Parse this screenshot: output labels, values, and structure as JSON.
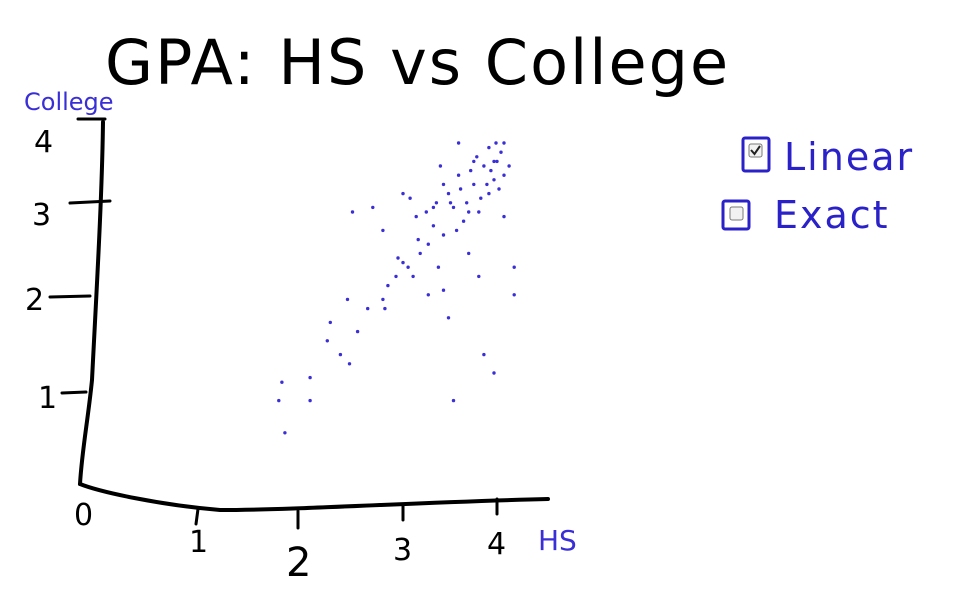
{
  "chart_data": {
    "type": "scatter",
    "title": "GPA: HS vs College",
    "xlabel": "HS",
    "ylabel": "College",
    "xlim": [
      0,
      4.5
    ],
    "ylim": [
      0,
      4
    ],
    "x_ticks": [
      "0",
      "1",
      "2",
      "3",
      "4"
    ],
    "y_ticks": [
      "1",
      "2",
      "3",
      "4"
    ],
    "points": [
      [
        1.85,
        1.15
      ],
      [
        1.82,
        0.95
      ],
      [
        1.88,
        0.6
      ],
      [
        2.13,
        1.2
      ],
      [
        2.13,
        0.95
      ],
      [
        2.3,
        1.6
      ],
      [
        2.33,
        1.8
      ],
      [
        2.43,
        1.45
      ],
      [
        2.5,
        2.05
      ],
      [
        2.52,
        1.35
      ],
      [
        2.6,
        1.7
      ],
      [
        2.7,
        1.95
      ],
      [
        2.85,
        2.05
      ],
      [
        2.87,
        1.95
      ],
      [
        2.9,
        2.2
      ],
      [
        2.98,
        2.3
      ],
      [
        3.0,
        2.5
      ],
      [
        3.05,
        2.45
      ],
      [
        3.1,
        2.4
      ],
      [
        3.15,
        2.3
      ],
      [
        3.2,
        2.7
      ],
      [
        3.22,
        2.55
      ],
      [
        3.3,
        2.65
      ],
      [
        3.35,
        2.85
      ],
      [
        3.38,
        3.1
      ],
      [
        3.45,
        2.75
      ],
      [
        3.5,
        3.2
      ],
      [
        3.55,
        3.05
      ],
      [
        3.6,
        3.4
      ],
      [
        3.62,
        3.25
      ],
      [
        3.68,
        3.1
      ],
      [
        3.72,
        3.45
      ],
      [
        3.75,
        3.3
      ],
      [
        3.78,
        3.6
      ],
      [
        3.8,
        3.0
      ],
      [
        3.85,
        3.5
      ],
      [
        3.88,
        3.3
      ],
      [
        3.9,
        3.7
      ],
      [
        3.92,
        3.45
      ],
      [
        3.95,
        3.35
      ],
      [
        3.98,
        3.55
      ],
      [
        4.0,
        3.25
      ],
      [
        4.02,
        3.65
      ],
      [
        4.05,
        3.4
      ],
      [
        3.97,
        3.75
      ],
      [
        3.95,
        3.55
      ],
      [
        3.9,
        3.2
      ],
      [
        3.82,
        3.15
      ],
      [
        3.7,
        3.0
      ],
      [
        3.65,
        2.9
      ],
      [
        3.58,
        2.8
      ],
      [
        3.52,
        3.1
      ],
      [
        3.45,
        3.3
      ],
      [
        3.42,
        3.5
      ],
      [
        3.35,
        3.05
      ],
      [
        3.28,
        3.0
      ],
      [
        3.18,
        2.95
      ],
      [
        3.12,
        3.15
      ],
      [
        3.05,
        3.2
      ],
      [
        2.85,
        2.8
      ],
      [
        2.55,
        3.0
      ],
      [
        2.75,
        3.05
      ],
      [
        3.45,
        2.15
      ],
      [
        3.8,
        2.3
      ],
      [
        4.15,
        2.1
      ],
      [
        3.5,
        1.85
      ],
      [
        3.85,
        1.45
      ],
      [
        3.95,
        1.25
      ],
      [
        3.55,
        0.95
      ],
      [
        4.05,
        2.95
      ],
      [
        4.15,
        2.4
      ],
      [
        3.3,
        2.1
      ],
      [
        3.7,
        2.55
      ],
      [
        3.4,
        2.4
      ],
      [
        4.05,
        3.75
      ],
      [
        3.6,
        3.75
      ],
      [
        4.1,
        3.5
      ],
      [
        3.75,
        3.55
      ]
    ]
  },
  "legend": {
    "items": [
      {
        "label": "Linear",
        "checked": true
      },
      {
        "label": "Exact",
        "checked": false
      }
    ]
  }
}
